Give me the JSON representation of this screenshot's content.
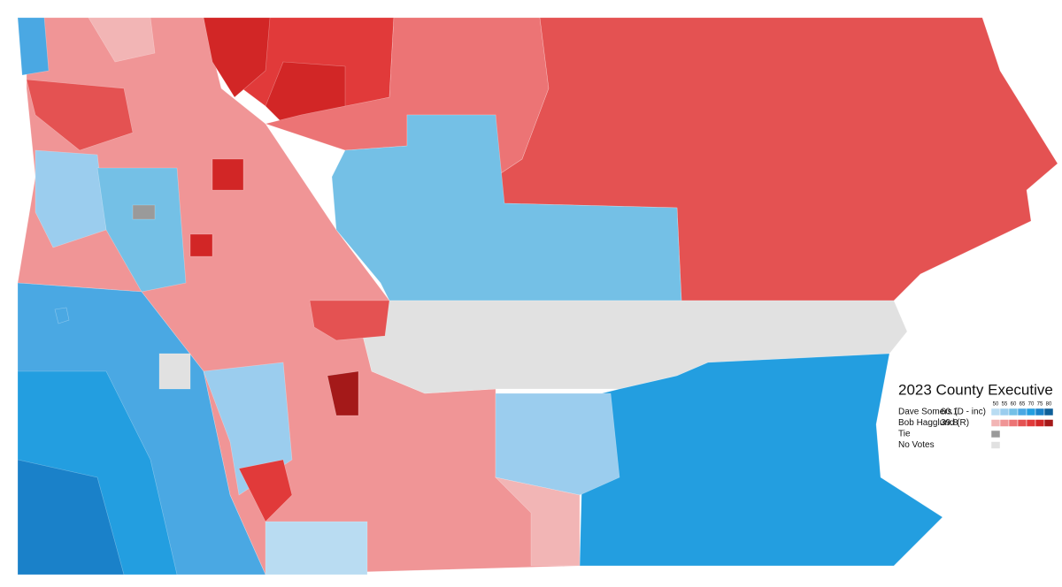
{
  "title": "2023 County Executive",
  "legend": {
    "scale": [
      50,
      55,
      60,
      65,
      70,
      75,
      80
    ],
    "rows": [
      {
        "name": "Dave Somers (D - inc)",
        "value": 60.1,
        "colors": [
          "#b9dcf2",
          "#9bcdee",
          "#74c0e6",
          "#4aa8e3",
          "#239ee0",
          "#1a81c9",
          "#0f5f98"
        ]
      },
      {
        "name": "Bob Hagglund (R)",
        "value": 39.8,
        "colors": [
          "#f2b5b5",
          "#f09596",
          "#ec7475",
          "#e45252",
          "#e13a3a",
          "#d22626",
          "#a41919"
        ]
      },
      {
        "name": "Tie",
        "colors": [
          "#9a9a9a"
        ]
      },
      {
        "name": "No Votes",
        "colors": [
          "#e1e1e1"
        ]
      }
    ]
  }
}
